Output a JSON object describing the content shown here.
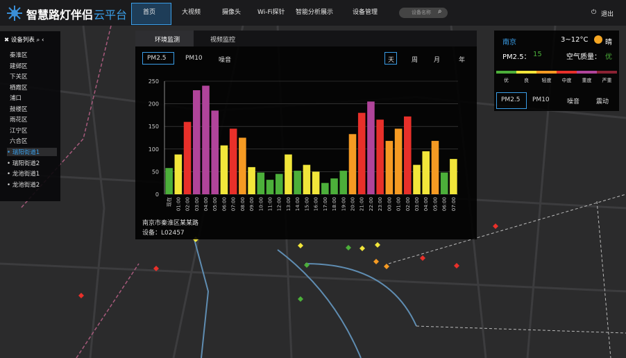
{
  "header": {
    "title": "智慧路灯伴侣",
    "title_suffix": "云平台",
    "nav": [
      "首页",
      "大视频",
      "摄像头",
      "Wi-Fi探针",
      "智能分析展示",
      "设备管理"
    ],
    "search_placeholder": "设备名称",
    "logout": "退出"
  },
  "sidebar": {
    "title": "设备列表",
    "items": [
      "秦淮区",
      "建邺区",
      "下关区",
      "栖霞区",
      "浦口",
      "鼓楼区",
      "雨花区",
      "江宁区",
      "六合区"
    ],
    "children": [
      "瑞阳街道1",
      "瑞阳街道2",
      "龙池街道1",
      "龙池街道2"
    ]
  },
  "panel": {
    "tabs": [
      "环境监测",
      "视频监控"
    ],
    "metrics": [
      "PM2.5",
      "PM10",
      "噪音"
    ],
    "periods": [
      "天",
      "周",
      "月",
      "年"
    ],
    "location": "南京市秦淮区某某路",
    "device": "设备：L02457"
  },
  "chart_data": {
    "type": "bar",
    "categories": [
      "现在",
      "01:00",
      "02:00",
      "03:00",
      "04:00",
      "05:00",
      "06:00",
      "07:00",
      "08:00",
      "09:00",
      "10:00",
      "11:00",
      "12:00",
      "13:00",
      "14:00",
      "15:00",
      "16:00",
      "17:00",
      "18:00",
      "19:00",
      "20:00",
      "21:00",
      "22:00",
      "23:00",
      "00:00",
      "01:00",
      "02:00",
      "03:00",
      "04:00",
      "05:00",
      "06:00",
      "07:00"
    ],
    "values": [
      58,
      88,
      160,
      230,
      240,
      185,
      108,
      145,
      125,
      60,
      48,
      32,
      45,
      88,
      52,
      65,
      50,
      25,
      35,
      52,
      133,
      180,
      205,
      165,
      118,
      145,
      172,
      65,
      95,
      118,
      48,
      78
    ],
    "colors": [
      "#4caf3a",
      "#f2e63a",
      "#e8302a",
      "#b0449a",
      "#b0449a",
      "#b0449a",
      "#f2e63a",
      "#e8302a",
      "#f59a23",
      "#f2e63a",
      "#4caf3a",
      "#4caf3a",
      "#4caf3a",
      "#f2e63a",
      "#4caf3a",
      "#f2e63a",
      "#f2e63a",
      "#4caf3a",
      "#4caf3a",
      "#4caf3a",
      "#f59a23",
      "#e8302a",
      "#b0449a",
      "#e8302a",
      "#f59a23",
      "#f59a23",
      "#e8302a",
      "#f2e63a",
      "#f2e63a",
      "#f59a23",
      "#4caf3a",
      "#f2e63a"
    ],
    "ylim": [
      0,
      250
    ],
    "yticks": [
      0,
      50,
      100,
      150,
      200,
      250
    ],
    "grid": true
  },
  "weather": {
    "city": "南京",
    "temperature": "3~12°C",
    "condition": "晴",
    "pm25_label": "PM2.5：",
    "pm25_value": 15,
    "quality_label": "空气质量：",
    "quality": "优",
    "levels": [
      {
        "label": "优",
        "color": "#4caf3a"
      },
      {
        "label": "良",
        "color": "#f2e63a"
      },
      {
        "label": "轻度",
        "color": "#f59a23"
      },
      {
        "label": "中度",
        "color": "#e8302a"
      },
      {
        "label": "重度",
        "color": "#b0449a"
      },
      {
        "label": "严重",
        "color": "#8a2233"
      }
    ],
    "tabs": [
      "PM2.5",
      "PM10",
      "噪音",
      "震动"
    ]
  }
}
